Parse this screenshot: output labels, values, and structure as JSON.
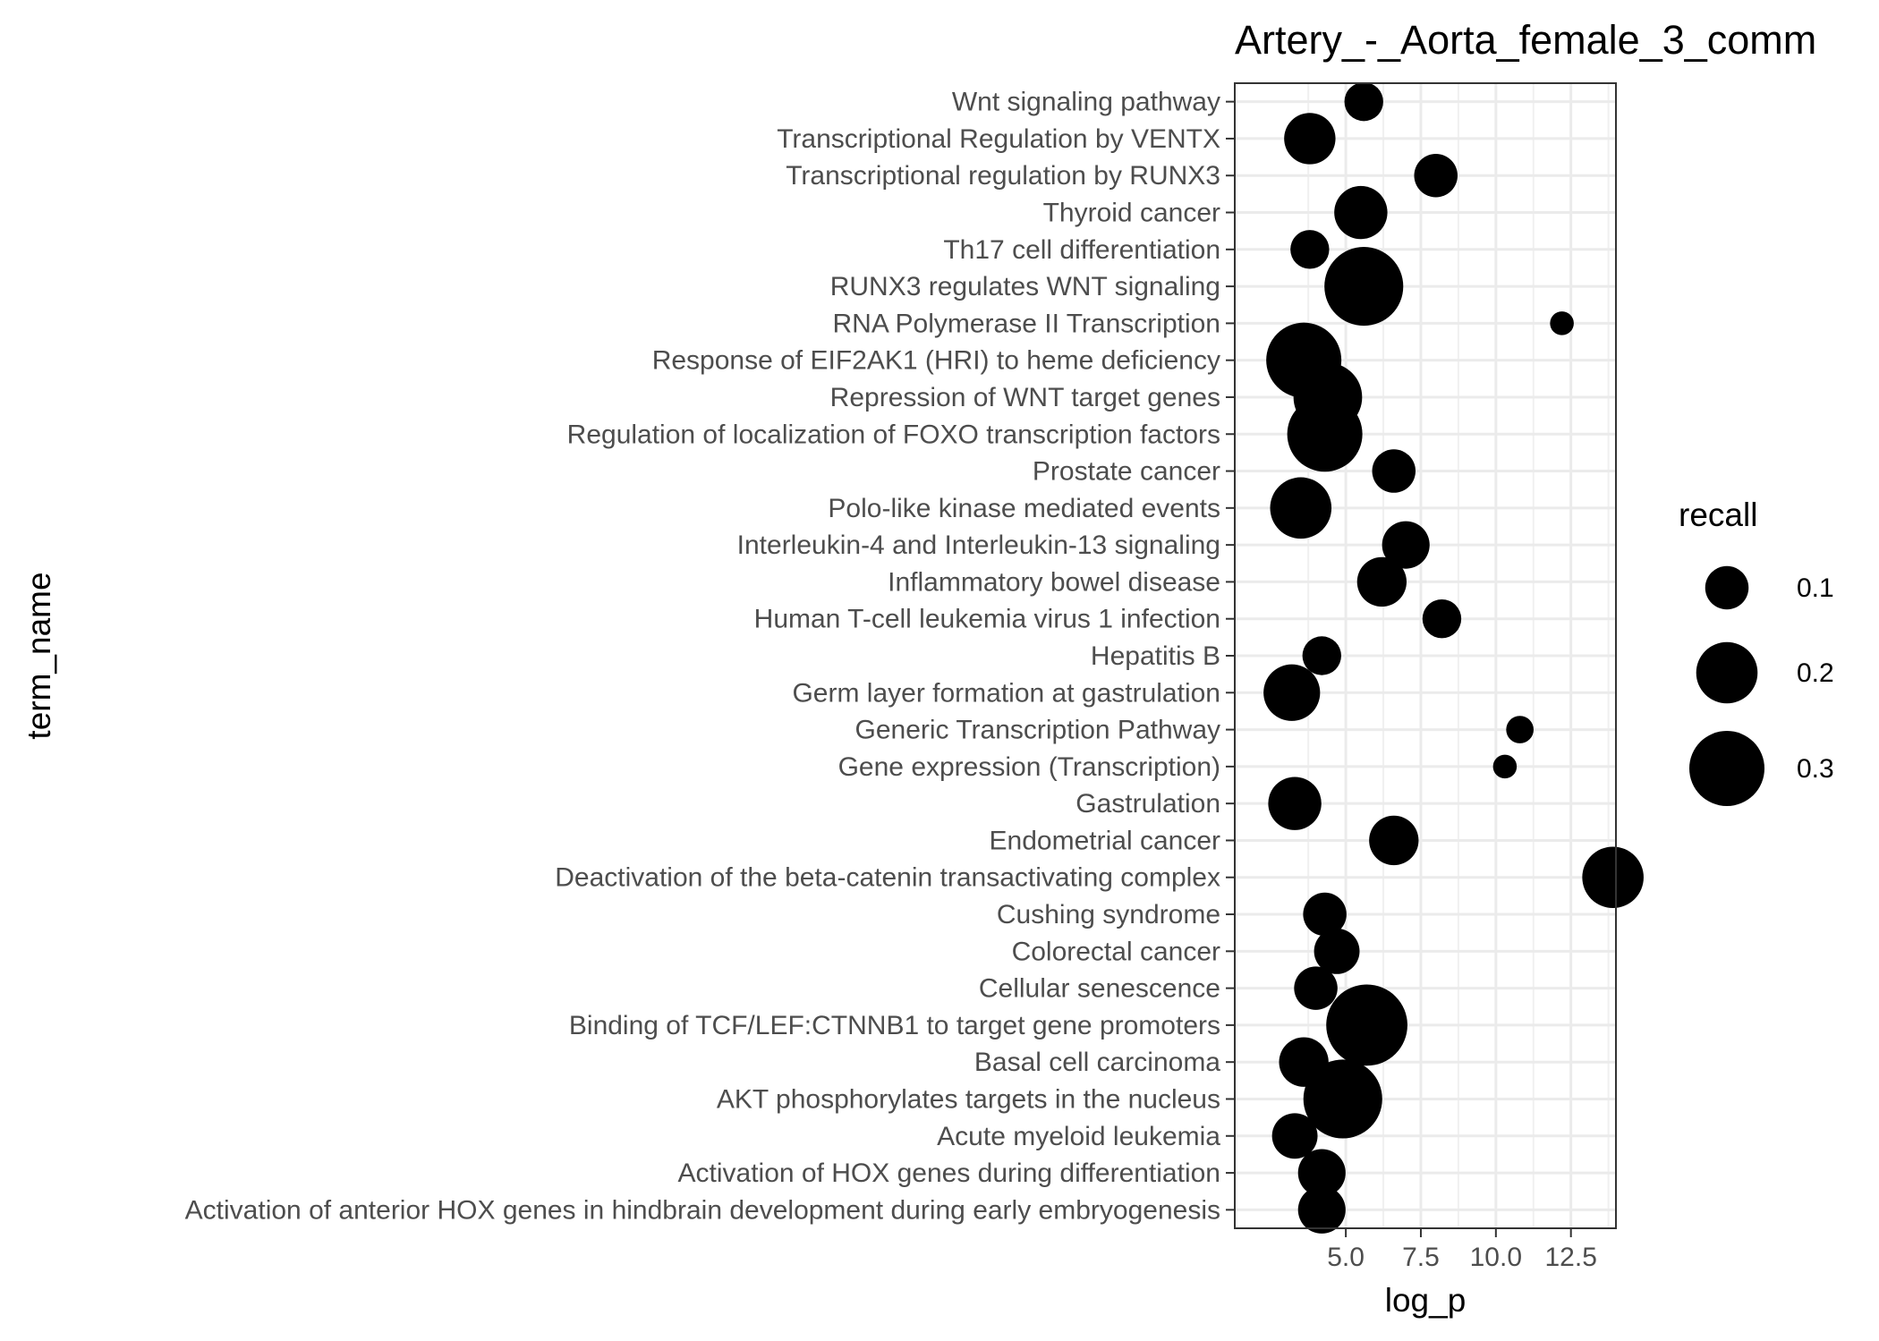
{
  "chart_data": {
    "type": "scatter",
    "title": "Artery_-_Aorta_female_3_comm",
    "xlabel": "log_p",
    "ylabel": "term_name",
    "xlim": [
      1.3,
      14.0
    ],
    "x_ticks": [
      5.0,
      7.5,
      10.0,
      12.5
    ],
    "x_tick_labels": [
      "5.0",
      "7.5",
      "10.0",
      "12.5"
    ],
    "grid": true,
    "legend": {
      "title": "recall",
      "placement": "right",
      "entries": [
        {
          "label": "0.1",
          "value": 0.1
        },
        {
          "label": "0.2",
          "value": 0.2
        },
        {
          "label": "0.3",
          "value": 0.3
        }
      ]
    },
    "marker_color": "#000000",
    "categories": [
      "Activation of anterior HOX genes in hindbrain development during early embryogenesis",
      "Activation of HOX genes during differentiation",
      "Acute myeloid leukemia",
      "AKT phosphorylates targets in the nucleus",
      "Basal cell carcinoma",
      "Binding of TCF/LEF:CTNNB1 to target gene promoters",
      "Cellular senescence",
      "Colorectal cancer",
      "Cushing syndrome",
      "Deactivation of the beta-catenin transactivating complex",
      "Endometrial cancer",
      "Gastrulation",
      "Gene expression (Transcription)",
      "Generic Transcription Pathway",
      "Germ layer formation at gastrulation",
      "Hepatitis B",
      "Human T-cell leukemia virus 1 infection",
      "Inflammatory bowel disease",
      "Interleukin-4 and Interleukin-13 signaling",
      "Polo-like kinase mediated events",
      "Prostate cancer",
      "Regulation of localization of FOXO transcription factors",
      "Repression of WNT target genes",
      "Response of EIF2AK1 (HRI) to heme deficiency",
      "RNA Polymerase II Transcription",
      "RUNX3 regulates WNT signaling",
      "Th17 cell differentiation",
      "Thyroid cancer",
      "Transcriptional regulation by RUNX3",
      "Transcriptional Regulation by VENTX",
      "Wnt signaling pathway"
    ],
    "points": [
      {
        "term": "Activation of anterior HOX genes in hindbrain development during early embryogenesis",
        "log_p": 4.2,
        "recall": 0.12
      },
      {
        "term": "Activation of HOX genes during differentiation",
        "log_p": 4.2,
        "recall": 0.12
      },
      {
        "term": "Acute myeloid leukemia",
        "log_p": 3.3,
        "recall": 0.11
      },
      {
        "term": "AKT phosphorylates targets in the nucleus",
        "log_p": 4.9,
        "recall": 0.33
      },
      {
        "term": "Basal cell carcinoma",
        "log_p": 3.6,
        "recall": 0.13
      },
      {
        "term": "Binding of TCF/LEF:CTNNB1 to target gene promoters",
        "log_p": 5.7,
        "recall": 0.35
      },
      {
        "term": "Cellular senescence",
        "log_p": 4.0,
        "recall": 0.1
      },
      {
        "term": "Colorectal cancer",
        "log_p": 4.7,
        "recall": 0.11
      },
      {
        "term": "Cushing syndrome",
        "log_p": 4.3,
        "recall": 0.1
      },
      {
        "term": "Deactivation of the beta-catenin transactivating complex",
        "log_p": 13.9,
        "recall": 0.2
      },
      {
        "term": "Endometrial cancer",
        "log_p": 6.6,
        "recall": 0.13
      },
      {
        "term": "Gastrulation",
        "log_p": 3.3,
        "recall": 0.15
      },
      {
        "term": "Gene expression (Transcription)",
        "log_p": 10.3,
        "recall": 0.03
      },
      {
        "term": "Generic Transcription Pathway",
        "log_p": 10.8,
        "recall": 0.04
      },
      {
        "term": "Germ layer formation at gastrulation",
        "log_p": 3.2,
        "recall": 0.17
      },
      {
        "term": "Hepatitis B",
        "log_p": 4.2,
        "recall": 0.08
      },
      {
        "term": "Human T-cell leukemia virus 1 infection",
        "log_p": 8.2,
        "recall": 0.08
      },
      {
        "term": "Inflammatory bowel disease",
        "log_p": 6.2,
        "recall": 0.13
      },
      {
        "term": "Interleukin-4 and Interleukin-13 signaling",
        "log_p": 7.0,
        "recall": 0.12
      },
      {
        "term": "Polo-like kinase mediated events",
        "log_p": 3.5,
        "recall": 0.2
      },
      {
        "term": "Prostate cancer",
        "log_p": 6.6,
        "recall": 0.1
      },
      {
        "term": "Regulation of localization of FOXO transcription factors",
        "log_p": 4.3,
        "recall": 0.3
      },
      {
        "term": "Repression of WNT target genes",
        "log_p": 4.4,
        "recall": 0.25
      },
      {
        "term": "Response of EIF2AK1 (HRI) to heme deficiency",
        "log_p": 3.6,
        "recall": 0.3
      },
      {
        "term": "RNA Polymerase II Transcription",
        "log_p": 12.2,
        "recall": 0.03
      },
      {
        "term": "RUNX3 regulates WNT signaling",
        "log_p": 5.6,
        "recall": 0.33
      },
      {
        "term": "Th17 cell differentiation",
        "log_p": 3.8,
        "recall": 0.08
      },
      {
        "term": "Thyroid cancer",
        "log_p": 5.5,
        "recall": 0.15
      },
      {
        "term": "Transcriptional regulation by RUNX3",
        "log_p": 8.0,
        "recall": 0.1
      },
      {
        "term": "Transcriptional Regulation by VENTX",
        "log_p": 3.8,
        "recall": 0.14
      },
      {
        "term": "Wnt signaling pathway",
        "log_p": 5.6,
        "recall": 0.08
      }
    ]
  }
}
